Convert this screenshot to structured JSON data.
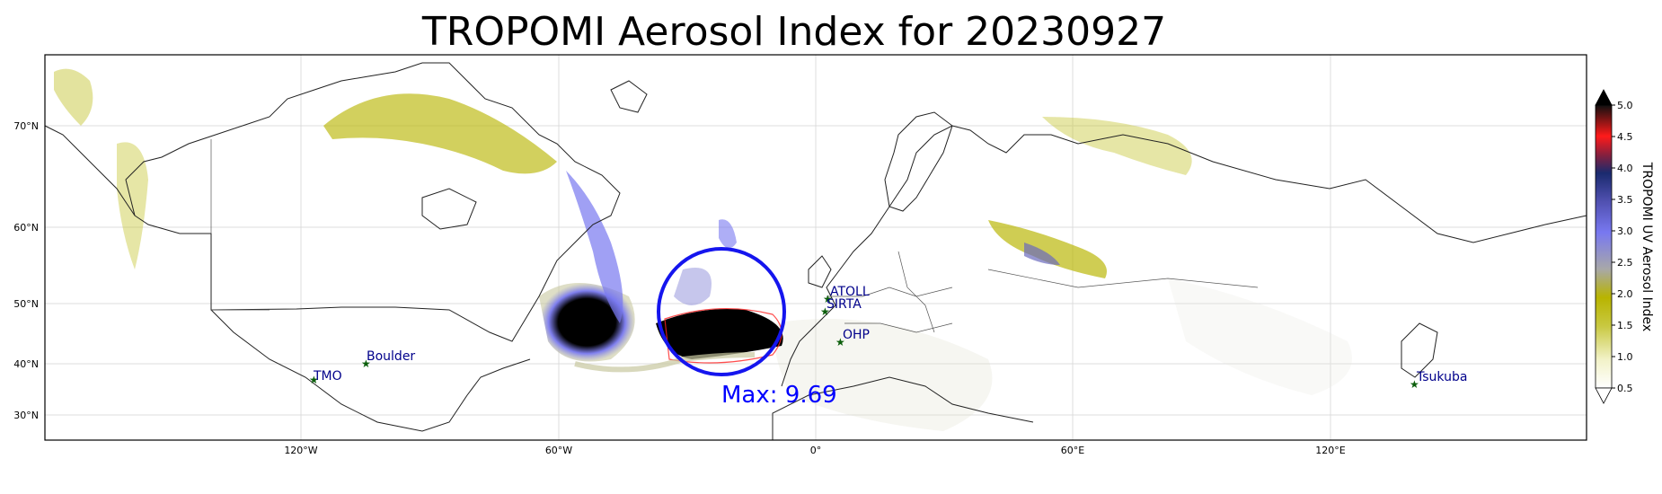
{
  "title": "TROPOMI Aerosol Index for 20230927",
  "map": {
    "lon_ticks": [
      "120°W",
      "60°W",
      "0°",
      "60°E",
      "120°E"
    ],
    "lat_ticks": [
      "70°N",
      "60°N",
      "50°N",
      "40°N",
      "30°N"
    ]
  },
  "stations": [
    {
      "name": "TMO"
    },
    {
      "name": "Boulder"
    },
    {
      "name": "ATOLL"
    },
    {
      "name": "SIRTA"
    },
    {
      "name": "OHP"
    },
    {
      "name": "Tsukuba"
    }
  ],
  "max_annotation": "Max: 9.69",
  "colorbar": {
    "label": "TROPOMI UV Aerosol Index",
    "ticks": [
      "5.0",
      "4.5",
      "4.0",
      "3.5",
      "3.0",
      "2.5",
      "2.0",
      "1.5",
      "1.0",
      "0.5"
    ],
    "colors": [
      "#000000",
      "#ff2020",
      "#1a2a6e",
      "#7a7af0",
      "#a0a0a0",
      "#b8b800",
      "#ffffff"
    ]
  }
}
